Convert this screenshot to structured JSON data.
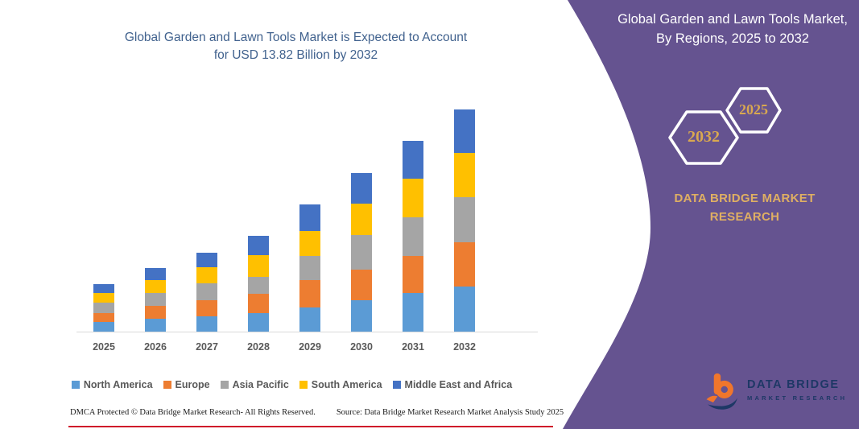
{
  "left_panel": {
    "title_lines": [
      "Global Garden and Lawn Tools Market is Expected to Account",
      "for USD 13.82 Billion by 2032"
    ],
    "footer": {
      "dmca": "DMCA Protected © Data Bridge Market Research-  All Rights Reserved.",
      "source": "Source: Data Bridge Market Research  Market Analysis Study 2025"
    }
  },
  "chart_data": {
    "type": "bar",
    "stacked": true,
    "title": "Global Garden and Lawn Tools Market is Expected to Account for USD 13.82 Billion by 2032",
    "value_unit": "USD Billion",
    "categories": [
      "2025",
      "2026",
      "2027",
      "2028",
      "2029",
      "2030",
      "2031",
      "2032"
    ],
    "series": [
      {
        "name": "North America",
        "color": "#5B9BD5",
        "values": [
          0.6,
          0.8,
          0.95,
          1.15,
          1.5,
          1.95,
          2.4,
          2.8
        ]
      },
      {
        "name": "Europe",
        "color": "#ED7D31",
        "values": [
          0.55,
          0.8,
          1.0,
          1.2,
          1.7,
          1.9,
          2.3,
          2.75
        ]
      },
      {
        "name": "Asia Pacific",
        "color": "#A5A5A5",
        "values": [
          0.65,
          0.8,
          1.05,
          1.05,
          1.5,
          2.15,
          2.4,
          2.8
        ]
      },
      {
        "name": "South America",
        "color": "#FFC000",
        "values": [
          0.6,
          0.8,
          1.0,
          1.35,
          1.55,
          1.95,
          2.4,
          2.75
        ]
      },
      {
        "name": "Middle East and Africa",
        "color": "#4472C4",
        "values": [
          0.55,
          0.75,
          0.9,
          1.2,
          1.65,
          1.9,
          2.35,
          2.72
        ]
      }
    ],
    "totals": [
      2.95,
      3.95,
      4.9,
      5.95,
      7.9,
      9.85,
      11.85,
      13.82
    ],
    "ylim": [
      0,
      14
    ],
    "grid": false,
    "y_axis_visible": false,
    "legend_position": "bottom"
  },
  "right_panel": {
    "title": "Global Garden and Lawn Tools Market, By Regions, 2025 to 2032",
    "hexagon_back_label": "2032",
    "hexagon_front_label": "2025",
    "brand_lines": [
      "DATA BRIDGE MARKET",
      "RESEARCH"
    ],
    "logo": {
      "name": "DATA BRIDGE",
      "tagline": "MARKET RESEARCH"
    }
  },
  "colors": {
    "purple": "#655390",
    "gold": "#D9A850",
    "title_blue": "#41628E",
    "axis_text": "#595959",
    "logo_orange": "#F0762C",
    "logo_navy": "#1E3866",
    "red_line": "#D01B2A",
    "baseline_gray": "#D9D9D9"
  }
}
